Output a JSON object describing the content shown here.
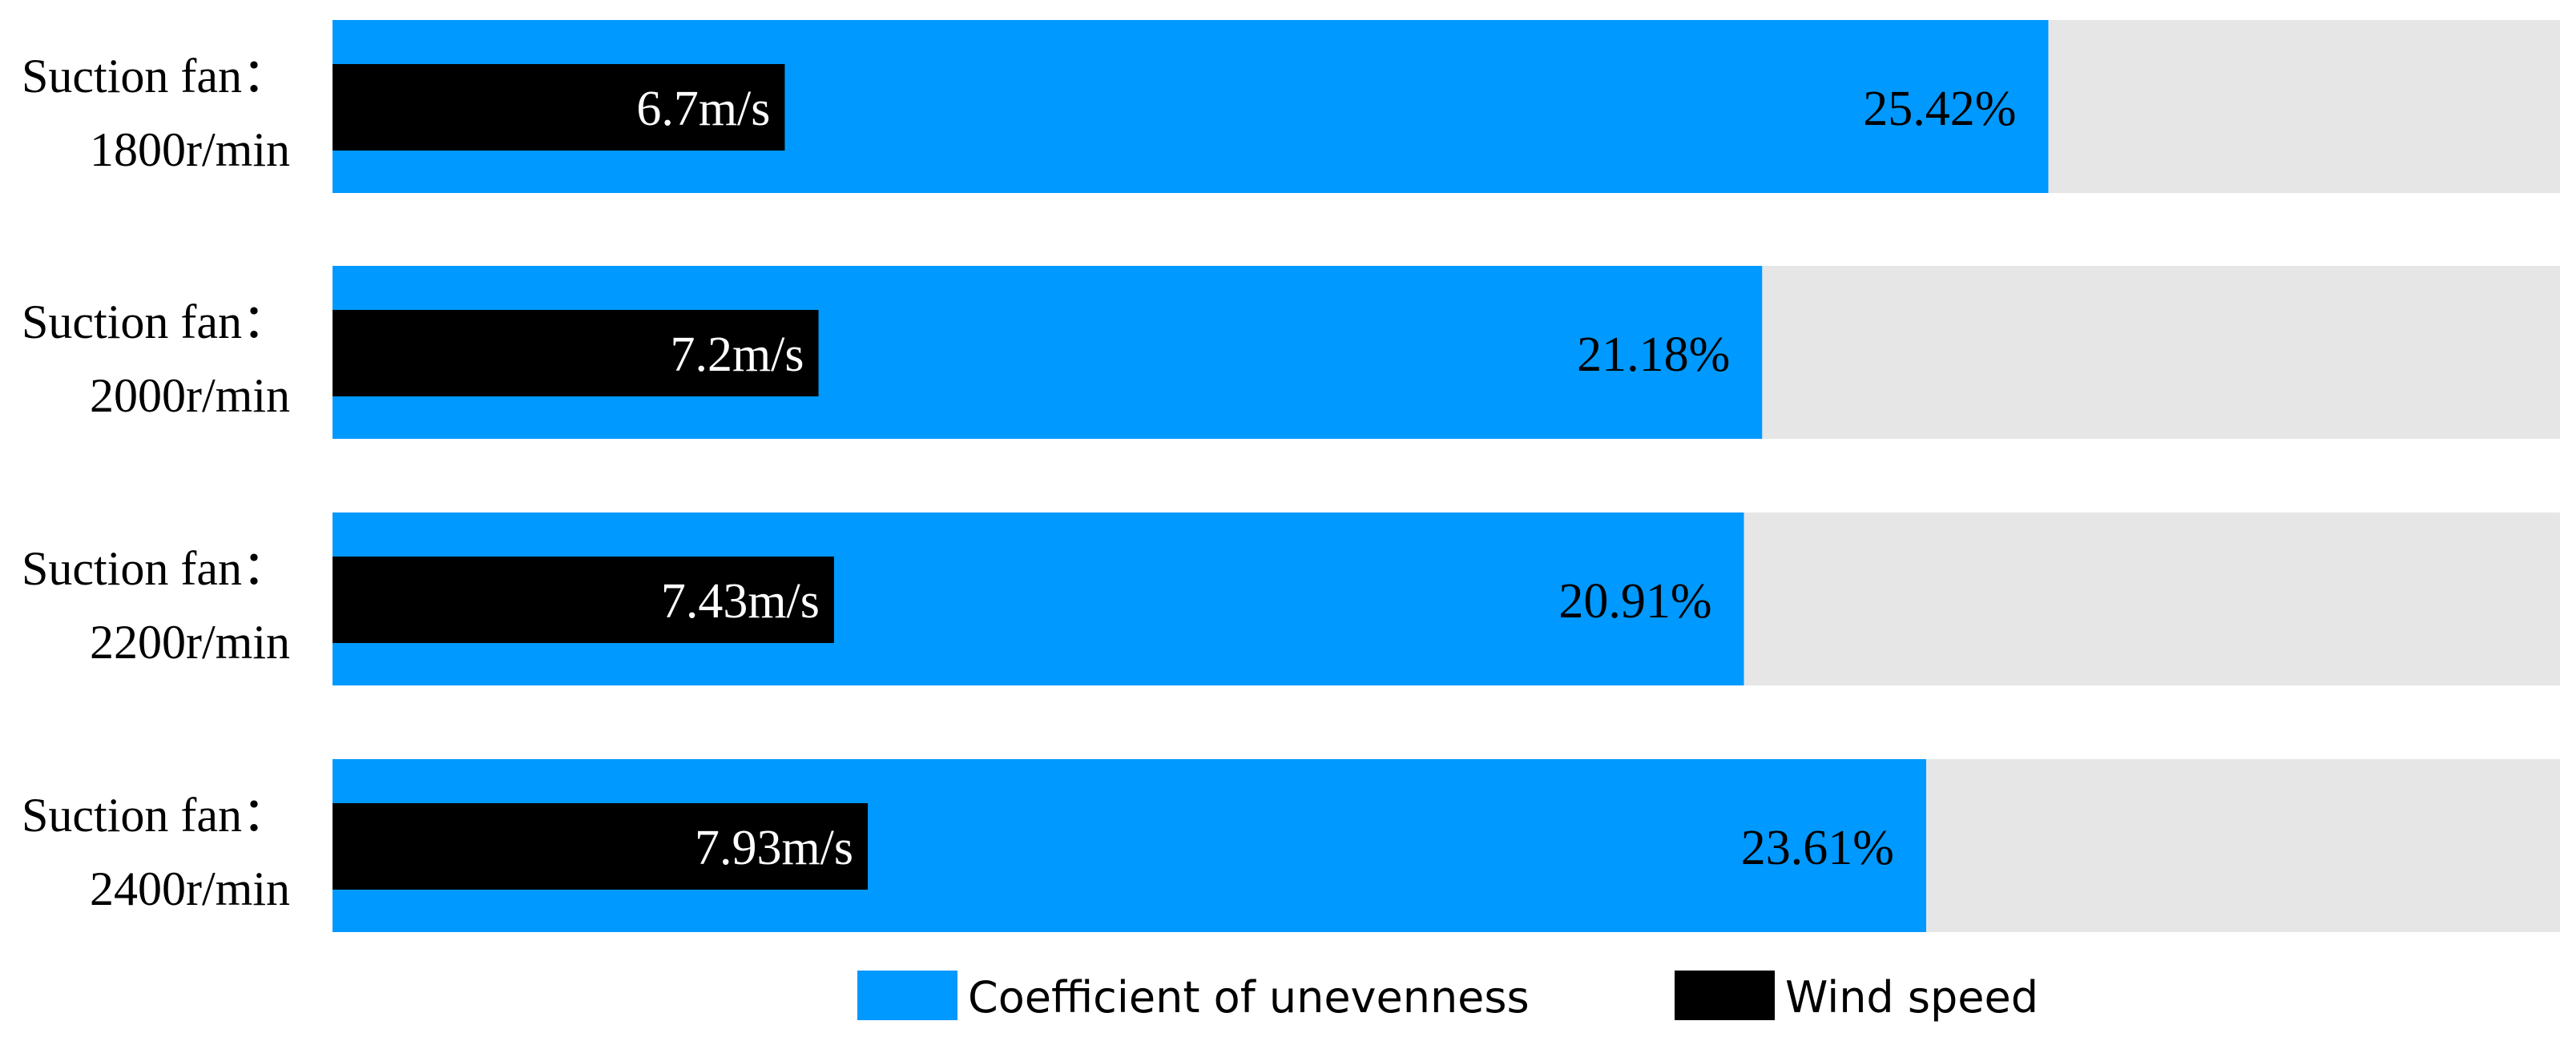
{
  "chart_data": {
    "type": "bar",
    "orientation": "horizontal",
    "categories": [
      [
        "Suction fan：",
        "1800r/min"
      ],
      [
        "Suction fan：",
        "2000r/min"
      ],
      [
        "Suction fan：",
        "2200r/min"
      ],
      [
        "Suction fan：",
        "2400r/min"
      ]
    ],
    "series": [
      {
        "name": "Coefficient of unevenness",
        "color": "#0099ff",
        "values": [
          25.42,
          21.18,
          20.91,
          23.61
        ],
        "labels": [
          "25.42%",
          "21.18%",
          "20.91%",
          "23.61%"
        ]
      },
      {
        "name": "Wind speed",
        "color": "#000000",
        "values": [
          6.7,
          7.2,
          7.43,
          7.93
        ],
        "labels": [
          "6.7m/s",
          "7.2m/s",
          "7.43m/s",
          "7.93m/s"
        ]
      }
    ],
    "background_bar_color": "#e6e6e6",
    "xlim": [
      0,
      33
    ],
    "grid": false,
    "legend_position": "bottom"
  }
}
